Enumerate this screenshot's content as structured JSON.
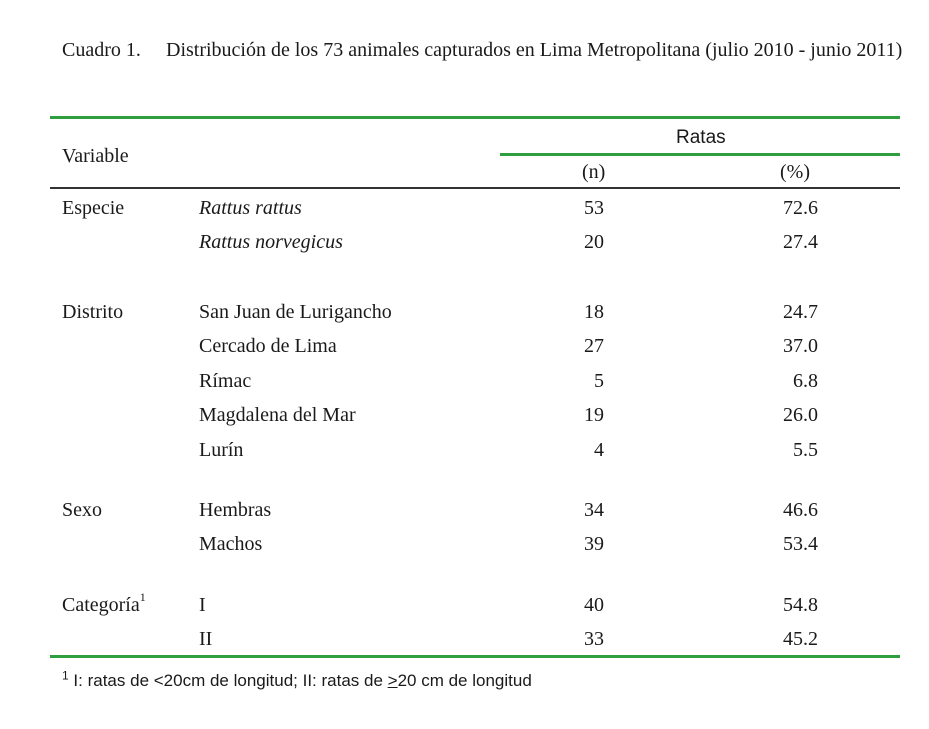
{
  "caption": {
    "number": "Cuadro 1.",
    "text": "Distribución de los 73 animales capturados en Lima Metropolitana (julio 2010 - junio 2011)"
  },
  "headers": {
    "variable": "Variable",
    "group": "Ratas",
    "n": "(n)",
    "pct": "(%)"
  },
  "groups": [
    {
      "label": "Especie",
      "sup": "",
      "rows": [
        {
          "cat": "Rattus rattus",
          "italic": true,
          "n": "53",
          "pct": "72.6"
        },
        {
          "cat": "Rattus norvegicus",
          "italic": true,
          "n": "20",
          "pct": "27.4"
        }
      ]
    },
    {
      "label": "Distrito",
      "sup": "",
      "rows": [
        {
          "cat": "San Juan de Lurigancho",
          "italic": false,
          "n": "18",
          "pct": "24.7"
        },
        {
          "cat": "Cercado de Lima",
          "italic": false,
          "n": "27",
          "pct": "37.0"
        },
        {
          "cat": "Rímac",
          "italic": false,
          "n": "5",
          "pct": "6.8"
        },
        {
          "cat": "Magdalena del Mar",
          "italic": false,
          "n": "19",
          "pct": "26.0"
        },
        {
          "cat": "Lurín",
          "italic": false,
          "n": "4",
          "pct": "5.5"
        }
      ]
    },
    {
      "label": "Sexo",
      "sup": "",
      "rows": [
        {
          "cat": "Hembras",
          "italic": false,
          "n": "34",
          "pct": "46.6"
        },
        {
          "cat": "Machos",
          "italic": false,
          "n": "39",
          "pct": "53.4"
        }
      ]
    },
    {
      "label": "Categoría",
      "sup": "1",
      "rows": [
        {
          "cat": "I",
          "italic": false,
          "n": "40",
          "pct": "54.8"
        },
        {
          "cat": "II",
          "italic": false,
          "n": "33",
          "pct": "45.2"
        }
      ]
    }
  ],
  "footnote": {
    "marker": "1",
    "part1": "I: ratas de <20cm de longitud; II: ratas de ",
    "underlined": ">",
    "part2": "20 cm de longitud"
  },
  "colors": {
    "rule": "#2e9e3e"
  }
}
